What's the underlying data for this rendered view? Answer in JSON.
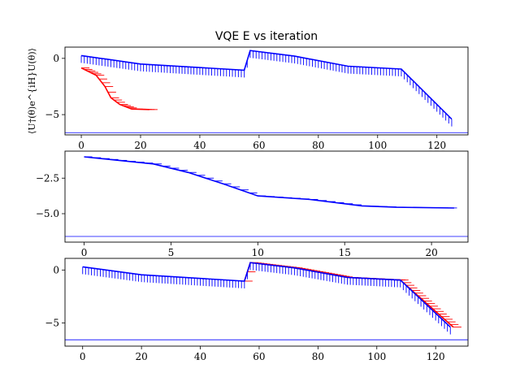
{
  "title": "VQE E vs iteration",
  "ylabel": "⟨U†(θ)e^{iH}U(θ)⟩",
  "colors": {
    "primary": "#0000ff",
    "secondary": "#ff0000",
    "frame": "#000000"
  },
  "chart_data": [
    {
      "type": "line",
      "title": "VQE E vs iteration",
      "ylabel": "⟨U†(θ)e^{iH}U(θ)⟩",
      "xlim": [
        -5.5,
        130.5
      ],
      "ylim": [
        -6.8,
        1.0
      ],
      "xticks": [
        0,
        20,
        40,
        60,
        80,
        100,
        120
      ],
      "yticks": [
        0,
        -5
      ],
      "xtick_labels": [
        "0",
        "20",
        "40",
        "60",
        "80",
        "100",
        "120"
      ],
      "ytick_labels": [
        "0",
        "−5"
      ],
      "hline": -6.6,
      "series": [
        {
          "color": "#0000ff",
          "errors": "below",
          "points": [
            [
              0,
              0.25
            ],
            [
              20,
              -0.5
            ],
            [
              55,
              -1.05
            ],
            [
              57,
              0.7
            ],
            [
              72,
              0.2
            ],
            [
              90,
              -0.7
            ],
            [
              108,
              -0.95
            ],
            [
              125,
              -5.4
            ]
          ]
        },
        {
          "color": "#ff0000",
          "errors": "right",
          "points": [
            [
              0,
              -0.85
            ],
            [
              5,
              -1.5
            ],
            [
              8,
              -2.5
            ],
            [
              10,
              -3.5
            ],
            [
              13,
              -4.1
            ],
            [
              17,
              -4.5
            ],
            [
              23,
              -4.55
            ]
          ]
        }
      ]
    },
    {
      "type": "line",
      "xlim": [
        -1.1,
        22.1
      ],
      "ylim": [
        -7.0,
        -0.6
      ],
      "xticks": [
        0,
        5,
        10,
        15,
        20
      ],
      "yticks": [
        -2.5,
        -5.0
      ],
      "xtick_labels": [
        "0",
        "5",
        "10",
        "15",
        "20"
      ],
      "ytick_labels": [
        "−2.5",
        "−5.0"
      ],
      "hline": -6.6,
      "series": [
        {
          "color": "#0000ff",
          "errors": "right",
          "points": [
            [
              0,
              -1.0
            ],
            [
              4,
              -1.5
            ],
            [
              6,
              -2.1
            ],
            [
              8,
              -2.9
            ],
            [
              10,
              -3.75
            ],
            [
              13,
              -4.0
            ],
            [
              16,
              -4.45
            ],
            [
              18,
              -4.55
            ],
            [
              21.3,
              -4.6
            ]
          ]
        }
      ]
    },
    {
      "type": "line",
      "xlim": [
        -6.0,
        131.0
      ],
      "ylim": [
        -7.2,
        1.1
      ],
      "xticks": [
        0,
        20,
        40,
        60,
        80,
        100,
        120
      ],
      "yticks": [
        0,
        -5
      ],
      "xtick_labels": [
        "0",
        "20",
        "40",
        "60",
        "80",
        "100",
        "120"
      ],
      "ytick_labels": [
        "0",
        "−5"
      ],
      "hline": -6.6,
      "series": [
        {
          "color": "#ff0000",
          "errors": "right",
          "points": [
            [
              55,
              -1.05
            ],
            [
              57,
              0.7
            ],
            [
              72,
              0.2
            ],
            [
              90,
              -0.7
            ],
            [
              108,
              -0.95
            ],
            [
              126,
              -5.4
            ]
          ]
        },
        {
          "color": "#0000ff",
          "errors": "below",
          "points": [
            [
              0,
              0.3
            ],
            [
              20,
              -0.45
            ],
            [
              55,
              -1.05
            ],
            [
              57,
              0.7
            ],
            [
              72,
              0.2
            ],
            [
              90,
              -0.7
            ],
            [
              108,
              -0.95
            ],
            [
              125,
              -5.4
            ]
          ]
        }
      ]
    }
  ]
}
